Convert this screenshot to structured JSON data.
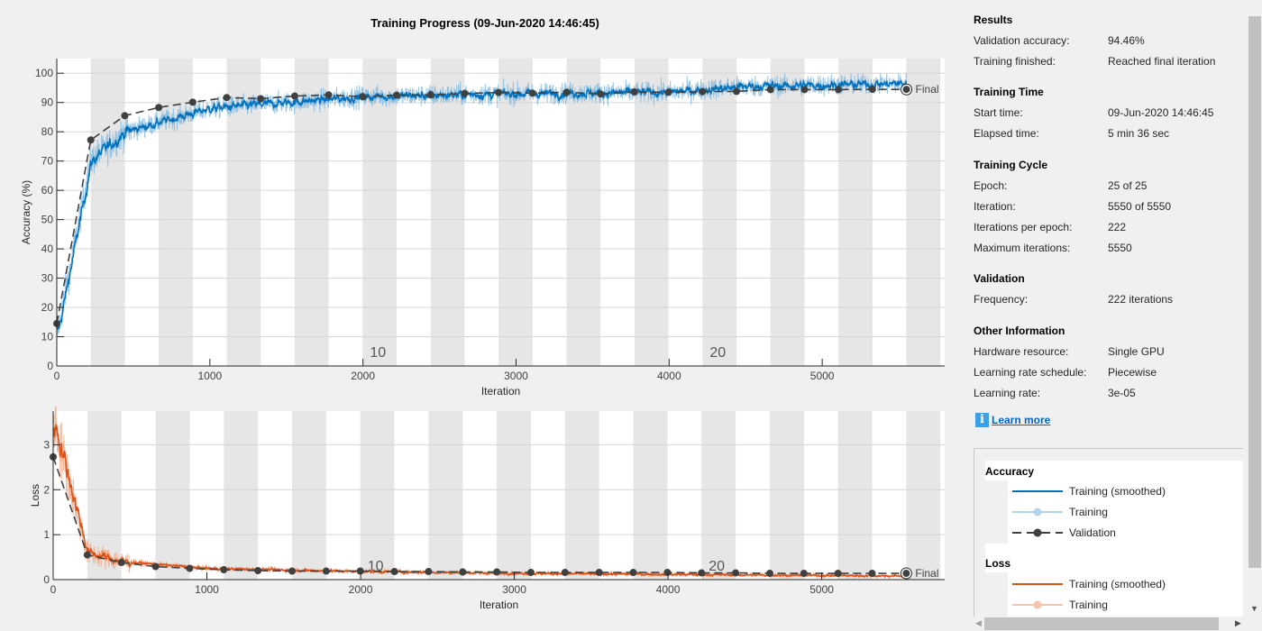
{
  "window": {
    "title": "Training Progress (09-Jun-2020 14:46:45)"
  },
  "chart_data": [
    {
      "type": "line",
      "name": "accuracy",
      "ylabel": "Accuracy (%)",
      "xlabel": "Iteration",
      "xlim": [
        0,
        5800
      ],
      "ylim": [
        0,
        105
      ],
      "xticks": [
        0,
        1000,
        2000,
        3000,
        4000,
        5000
      ],
      "yticks": [
        0,
        10,
        20,
        30,
        40,
        50,
        60,
        70,
        80,
        90,
        100
      ],
      "grid": true,
      "iterations_per_epoch": 222,
      "epoch_labels": [
        {
          "epoch": 10,
          "label": "10"
        },
        {
          "epoch": 20,
          "label": "20"
        }
      ],
      "final_label": "Final",
      "validation": {
        "x": [
          0,
          222,
          444,
          666,
          888,
          1110,
          1332,
          1554,
          1776,
          1998,
          2220,
          2442,
          2664,
          2886,
          3108,
          3330,
          3552,
          3774,
          3996,
          4218,
          4440,
          4662,
          4884,
          5106,
          5328,
          5550
        ],
        "y": [
          14.5,
          77.2,
          85.5,
          88.3,
          90.1,
          91.7,
          91.3,
          92.2,
          92.6,
          92.0,
          92.5,
          92.6,
          93.1,
          93.4,
          93.2,
          93.5,
          92.9,
          93.6,
          93.5,
          93.7,
          93.8,
          94.4,
          94.4,
          94.4,
          94.5,
          94.46
        ]
      },
      "training_trend": {
        "x": [
          0,
          222,
          444,
          1000,
          2000,
          3000,
          4000,
          4500,
          5550
        ],
        "y": [
          10,
          70,
          80,
          88,
          92,
          93,
          93.5,
          95.5,
          96.5
        ]
      },
      "colors": {
        "smoothed": "#0072bd",
        "raw": "#7fb8e0",
        "validation": "#404040"
      }
    },
    {
      "type": "line",
      "name": "loss",
      "ylabel": "Loss",
      "xlabel": "Iteration",
      "xlim": [
        0,
        5800
      ],
      "ylim": [
        0,
        3.75
      ],
      "xticks": [
        0,
        1000,
        2000,
        3000,
        4000,
        5000
      ],
      "yticks": [
        0,
        1,
        2,
        3
      ],
      "grid": true,
      "iterations_per_epoch": 222,
      "epoch_labels": [
        {
          "epoch": 10,
          "label": "10"
        },
        {
          "epoch": 20,
          "label": "20"
        }
      ],
      "final_label": "Final",
      "validation": {
        "x": [
          0,
          222,
          444,
          666,
          888,
          1110,
          1332,
          1554,
          1776,
          1998,
          2220,
          2442,
          2664,
          2886,
          3108,
          3330,
          3552,
          3774,
          3996,
          4218,
          4440,
          4662,
          4884,
          5106,
          5328,
          5550
        ],
        "y": [
          2.73,
          0.55,
          0.38,
          0.29,
          0.25,
          0.22,
          0.2,
          0.19,
          0.19,
          0.19,
          0.18,
          0.18,
          0.17,
          0.17,
          0.16,
          0.16,
          0.16,
          0.16,
          0.16,
          0.15,
          0.15,
          0.14,
          0.14,
          0.14,
          0.14,
          0.14
        ]
      },
      "training_trend": {
        "x": [
          0,
          222,
          444,
          1000,
          2000,
          3000,
          5550
        ],
        "y": [
          3.6,
          0.6,
          0.4,
          0.25,
          0.18,
          0.14,
          0.08
        ]
      },
      "colors": {
        "smoothed": "#d95319",
        "raw": "#f0a784",
        "validation": "#404040"
      }
    }
  ],
  "side": {
    "results": {
      "heading": "Results",
      "rows": [
        {
          "k": "Validation accuracy:",
          "v": "94.46%"
        },
        {
          "k": "Training finished:",
          "v": "Reached final iteration"
        }
      ]
    },
    "time": {
      "heading": "Training Time",
      "rows": [
        {
          "k": "Start time:",
          "v": "09-Jun-2020 14:46:45"
        },
        {
          "k": "Elapsed time:",
          "v": "5 min 36 sec"
        }
      ]
    },
    "cycle": {
      "heading": "Training Cycle",
      "rows": [
        {
          "k": "Epoch:",
          "v": "25 of 25"
        },
        {
          "k": "Iteration:",
          "v": "5550 of 5550"
        },
        {
          "k": "Iterations per epoch:",
          "v": "222"
        },
        {
          "k": "Maximum iterations:",
          "v": "5550"
        }
      ]
    },
    "validation": {
      "heading": "Validation",
      "rows": [
        {
          "k": "Frequency:",
          "v": "222 iterations"
        }
      ]
    },
    "other": {
      "heading": "Other Information",
      "rows": [
        {
          "k": "Hardware resource:",
          "v": "Single GPU"
        },
        {
          "k": "Learning rate schedule:",
          "v": "Piecewise"
        },
        {
          "k": "Learning rate:",
          "v": "3e-05"
        }
      ]
    },
    "learn_more": "Learn more",
    "info_icon": "i"
  },
  "legend": {
    "accuracy": {
      "heading": "Accuracy",
      "items": [
        "Training (smoothed)",
        "Training",
        "Validation"
      ]
    },
    "loss": {
      "heading": "Loss",
      "items": [
        "Training (smoothed)",
        "Training"
      ]
    }
  }
}
